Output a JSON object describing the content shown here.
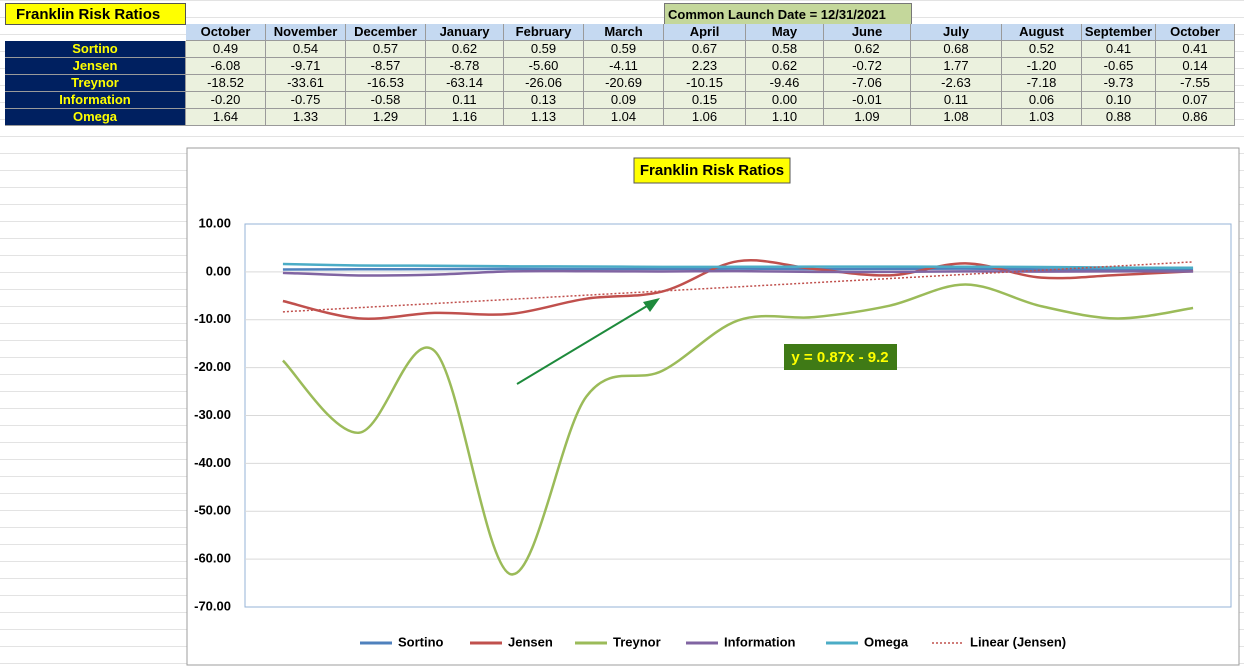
{
  "header": {
    "title": "Franklin Risk Ratios",
    "note": "Common Launch Date = 12/31/2021"
  },
  "table": {
    "columns": [
      "October",
      "November",
      "December",
      "January",
      "February",
      "March",
      "April",
      "May",
      "June",
      "July",
      "August",
      "September",
      "October"
    ],
    "rows": [
      {
        "label": "Sortino",
        "cells": [
          "0.49",
          "0.54",
          "0.57",
          "0.62",
          "0.59",
          "0.59",
          "0.67",
          "0.58",
          "0.62",
          "0.68",
          "0.52",
          "0.41",
          "0.41"
        ]
      },
      {
        "label": "Jensen",
        "cells": [
          "-6.08",
          "-9.71",
          "-8.57",
          "-8.78",
          "-5.60",
          "-4.11",
          "2.23",
          "0.62",
          "-0.72",
          "1.77",
          "-1.20",
          "-0.65",
          "0.14"
        ]
      },
      {
        "label": "Treynor",
        "cells": [
          "-18.52",
          "-33.61",
          "-16.53",
          "-63.14",
          "-26.06",
          "-20.69",
          "-10.15",
          "-9.46",
          "-7.06",
          "-2.63",
          "-7.18",
          "-9.73",
          "-7.55"
        ]
      },
      {
        "label": "Information",
        "cells": [
          "-0.20",
          "-0.75",
          "-0.58",
          "0.11",
          "0.13",
          "0.09",
          "0.15",
          "0.00",
          "-0.01",
          "0.11",
          "0.06",
          "0.10",
          "0.07"
        ]
      },
      {
        "label": "Omega",
        "cells": [
          "1.64",
          "1.33",
          "1.29",
          "1.16",
          "1.13",
          "1.04",
          "1.06",
          "1.10",
          "1.09",
          "1.08",
          "1.03",
          "0.88",
          "0.86"
        ]
      }
    ]
  },
  "chart_data": {
    "type": "line",
    "title": "Franklin Risk Ratios",
    "categories": [
      "October",
      "November",
      "December",
      "January",
      "February",
      "March",
      "April",
      "May",
      "June",
      "July",
      "August",
      "September",
      "October"
    ],
    "series": [
      {
        "name": "Sortino",
        "color": "#4f81bd",
        "values": [
          0.49,
          0.54,
          0.57,
          0.62,
          0.59,
          0.59,
          0.67,
          0.58,
          0.62,
          0.68,
          0.52,
          0.41,
          0.41
        ]
      },
      {
        "name": "Jensen",
        "color": "#c0504d",
        "values": [
          -6.08,
          -9.71,
          -8.57,
          -8.78,
          -5.6,
          -4.11,
          2.23,
          0.62,
          -0.72,
          1.77,
          -1.2,
          -0.65,
          0.14
        ]
      },
      {
        "name": "Treynor",
        "color": "#9bbb59",
        "values": [
          -18.52,
          -33.61,
          -16.53,
          -63.14,
          -26.06,
          -20.69,
          -10.15,
          -9.46,
          -7.06,
          -2.63,
          -7.18,
          -9.73,
          -7.55
        ]
      },
      {
        "name": "Information",
        "color": "#8064a2",
        "values": [
          -0.2,
          -0.75,
          -0.58,
          0.11,
          0.13,
          0.09,
          0.15,
          0.0,
          -0.01,
          0.11,
          0.06,
          0.1,
          0.07
        ]
      },
      {
        "name": "Omega",
        "color": "#4bacc6",
        "values": [
          1.64,
          1.33,
          1.29,
          1.16,
          1.13,
          1.04,
          1.06,
          1.1,
          1.09,
          1.08,
          1.03,
          0.88,
          0.86
        ]
      }
    ],
    "trendline": {
      "name": "Linear (Jensen)",
      "series": 1,
      "color": "#c0504d",
      "equation": "y = 0.87x - 9.2"
    },
    "ylim": [
      -70,
      10
    ],
    "yticks": [
      {
        "value": -70,
        "label": "-70.00"
      },
      {
        "value": -60,
        "label": "-60.00"
      },
      {
        "value": -50,
        "label": "-50.00"
      },
      {
        "value": -40,
        "label": "-40.00"
      },
      {
        "value": -30,
        "label": "-30.00"
      },
      {
        "value": -20,
        "label": "-20.00"
      },
      {
        "value": -10,
        "label": "-10.00"
      },
      {
        "value": 0,
        "label": "0.00"
      },
      {
        "value": 10,
        "label": "10.00"
      }
    ],
    "grid": true,
    "smooth": true
  }
}
